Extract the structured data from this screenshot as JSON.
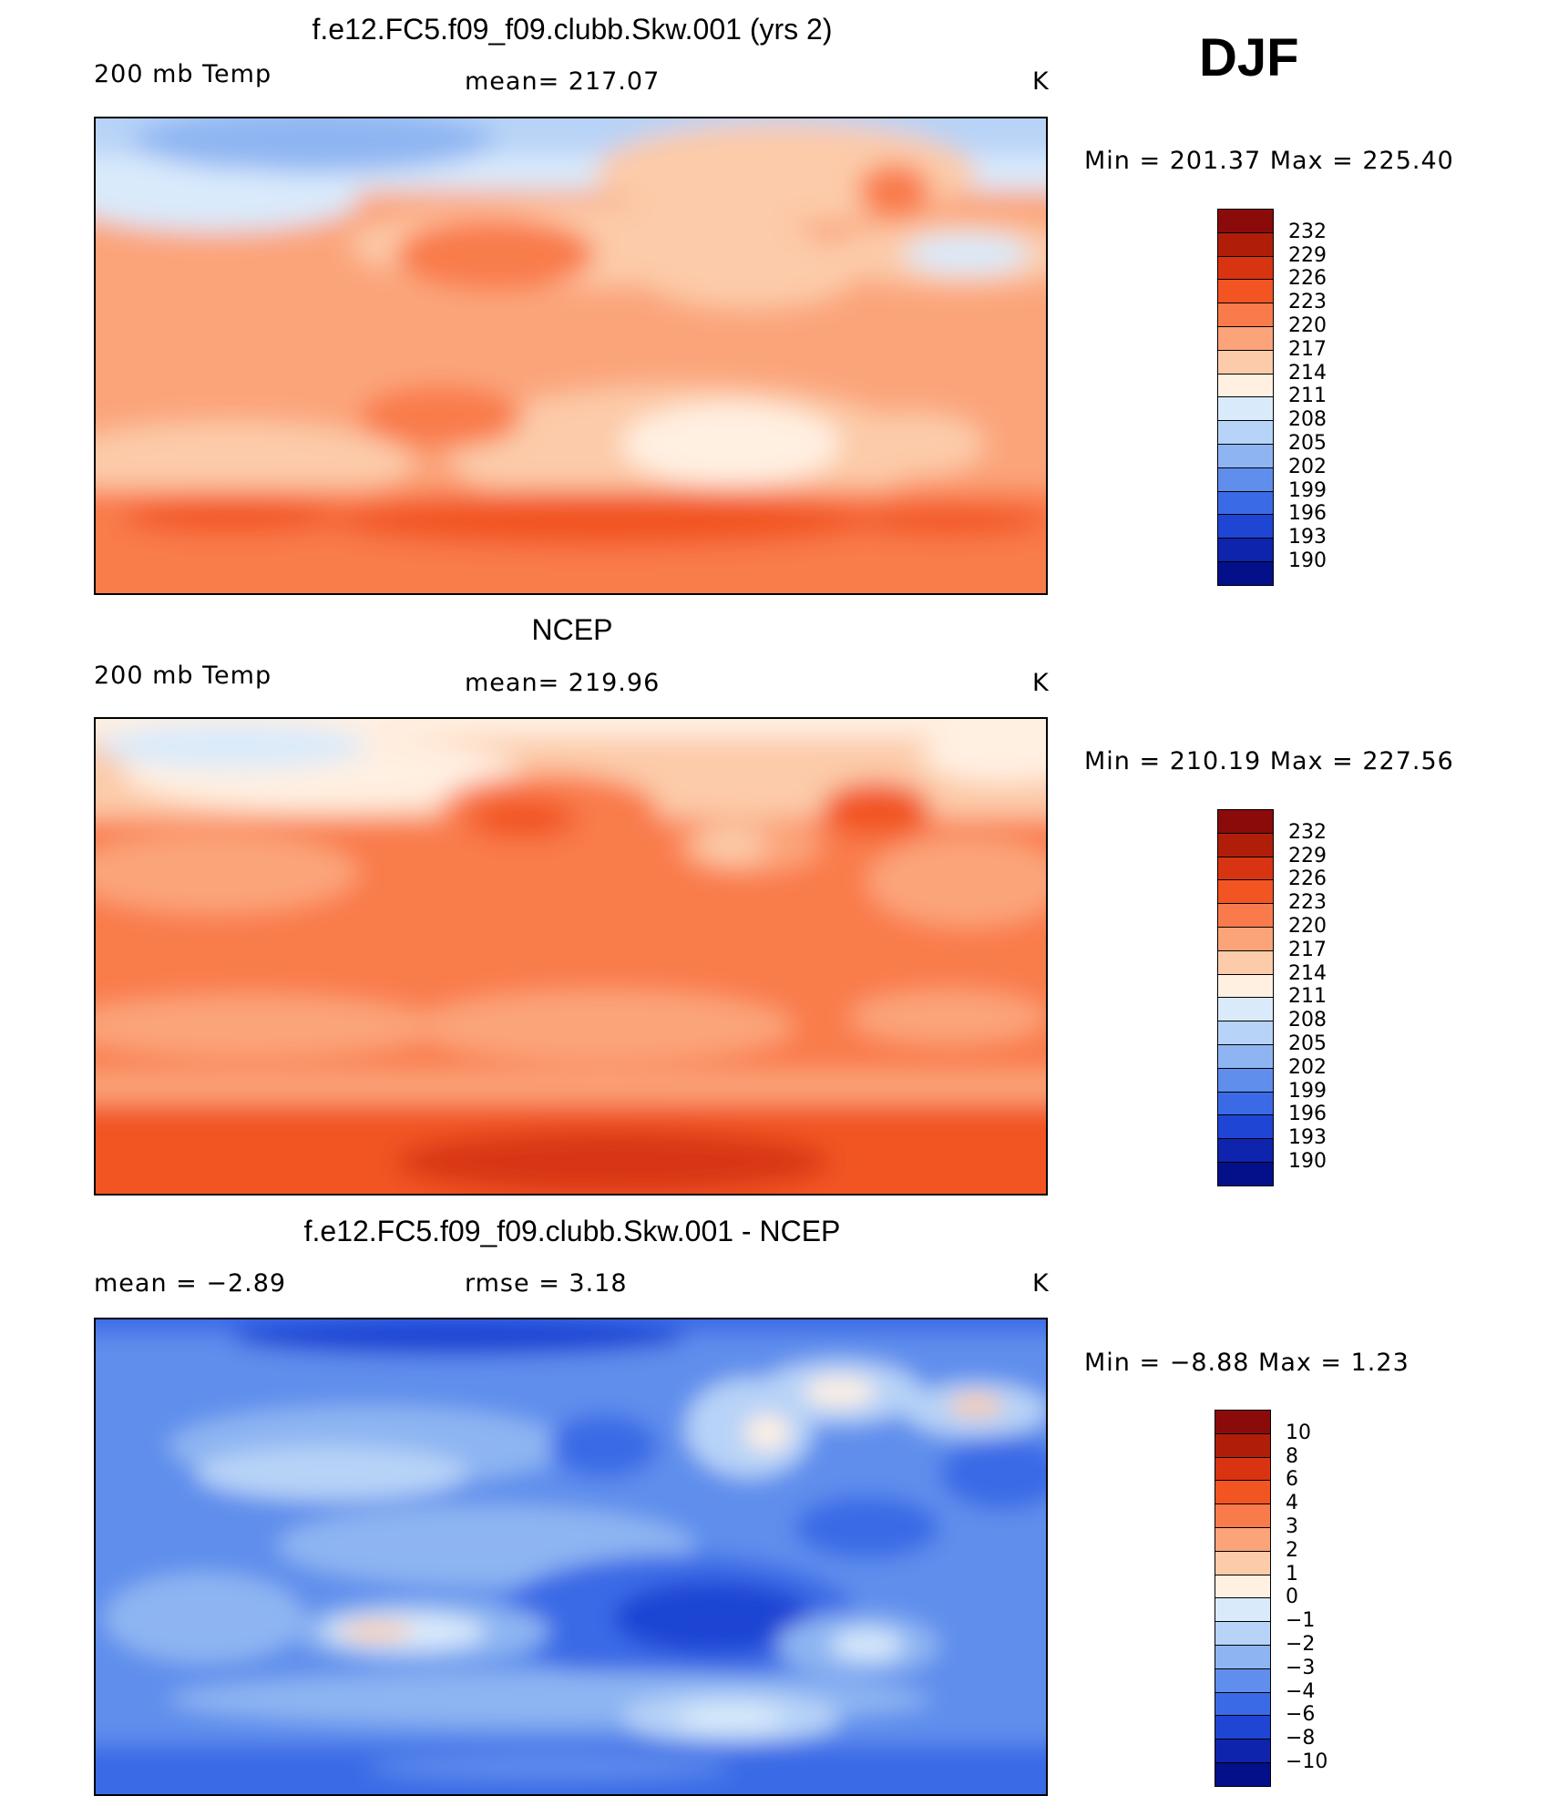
{
  "season": "DJF",
  "panels": [
    {
      "title": "f.e12.FC5.f09_f09.clubb.Skw.001 (yrs 2)",
      "variable": "200 mb Temp",
      "stat": "mean=  217.07",
      "units": "K",
      "minmax": "Min  =  201.37  Max  =  225.40",
      "scale_labels": [
        "232",
        "229",
        "226",
        "223",
        "220",
        "217",
        "214",
        "211",
        "208",
        "205",
        "202",
        "199",
        "196",
        "193",
        "190"
      ],
      "scale_colors": [
        "#8b0a0a",
        "#b01e0a",
        "#d83412",
        "#f25422",
        "#f97b4c",
        "#fba47a",
        "#fccba9",
        "#fff0e2",
        "#d9eafb",
        "#b7d3f7",
        "#8eb5f2",
        "#5f8eec",
        "#3b6ae6",
        "#1f45d4",
        "#0f24ac",
        "#03108a"
      ]
    },
    {
      "title": "NCEP",
      "variable": "200 mb Temp",
      "stat": "mean=  219.96",
      "units": "K",
      "minmax": "Min  =  210.19  Max  =  227.56",
      "scale_labels": [
        "232",
        "229",
        "226",
        "223",
        "220",
        "217",
        "214",
        "211",
        "208",
        "205",
        "202",
        "199",
        "196",
        "193",
        "190"
      ],
      "scale_colors": [
        "#8b0a0a",
        "#b01e0a",
        "#d83412",
        "#f25422",
        "#f97b4c",
        "#fba47a",
        "#fccba9",
        "#fff0e2",
        "#d9eafb",
        "#b7d3f7",
        "#8eb5f2",
        "#5f8eec",
        "#3b6ae6",
        "#1f45d4",
        "#0f24ac",
        "#03108a"
      ]
    },
    {
      "title": "f.e12.FC5.f09_f09.clubb.Skw.001 - NCEP",
      "variable": "mean  =    −2.89",
      "stat": "rmse  =     3.18",
      "units": "K",
      "minmax": "Min  =    −8.88  Max  =      1.23",
      "scale_labels": [
        "10",
        "8",
        "6",
        "4",
        "3",
        "2",
        "1",
        "0",
        "−1",
        "−2",
        "−3",
        "−4",
        "−6",
        "−8",
        "−10"
      ],
      "scale_colors": [
        "#8b0a0a",
        "#b01e0a",
        "#d83412",
        "#f25422",
        "#f97b4c",
        "#fba47a",
        "#fccba9",
        "#fff0e2",
        "#d9eafb",
        "#b7d3f7",
        "#8eb5f2",
        "#5f8eec",
        "#3b6ae6",
        "#1f45d4",
        "#0f24ac",
        "#03108a"
      ]
    }
  ]
}
